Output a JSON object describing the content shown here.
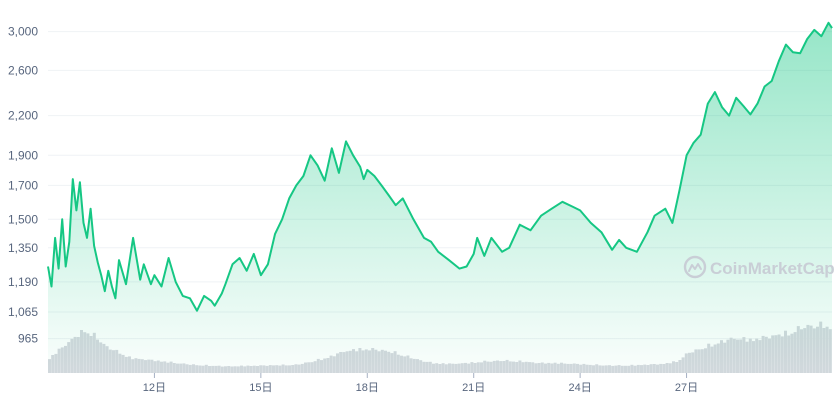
{
  "chart_data": {
    "type": "area",
    "title": "",
    "xlabel": "",
    "ylabel": "",
    "y_scale": "log",
    "ylim": [
      850,
      3250
    ],
    "xlim": [
      9.0,
      31.1
    ],
    "y_ticks": [
      3000,
      2600,
      2200,
      1900,
      1700,
      1500,
      1350,
      1190,
      1065,
      965
    ],
    "y_tick_labels": [
      "3,000",
      "2,600",
      "2,200",
      "1,900",
      "1,700",
      "1,500",
      "1,350",
      "1,190",
      "1,065",
      "965"
    ],
    "x_ticks": [
      12,
      15,
      18,
      21,
      24,
      27
    ],
    "x_tick_labels": [
      "12日",
      "15日",
      "18日",
      "21日",
      "24日",
      "27日"
    ],
    "watermark": "CoinMarketCap",
    "line_color": "#16c784",
    "grid": true,
    "series": [
      {
        "x": [
          9.0,
          9.1,
          9.2,
          9.3,
          9.4,
          9.5,
          9.6,
          9.7,
          9.8,
          9.9,
          10.0,
          10.1,
          10.2,
          10.3,
          10.4,
          10.5,
          10.6,
          10.7,
          10.8,
          10.9,
          11.0,
          11.2,
          11.4,
          11.6,
          11.7,
          11.9,
          12.0,
          12.2,
          12.4,
          12.6,
          12.8,
          13.0,
          13.2,
          13.4,
          13.6,
          13.7,
          13.9,
          14.0,
          14.2,
          14.4,
          14.6,
          14.8,
          15.0,
          15.2,
          15.4,
          15.6,
          15.8,
          16.0,
          16.2,
          16.4,
          16.6,
          16.8,
          17.0,
          17.2,
          17.4,
          17.6,
          17.8,
          17.9,
          18.0,
          18.2,
          18.4,
          18.6,
          18.8,
          19.0,
          19.3,
          19.6,
          19.8,
          20.0,
          20.3,
          20.6,
          20.8,
          21.0,
          21.1,
          21.3,
          21.5,
          21.8,
          22.0,
          22.3,
          22.6,
          22.9,
          23.2,
          23.5,
          23.8,
          24.0,
          24.3,
          24.6,
          24.9,
          25.1,
          25.3,
          25.6,
          25.9,
          26.1,
          26.4,
          26.6,
          26.8,
          27.0,
          27.2,
          27.4,
          27.6,
          27.8,
          28.0,
          28.2,
          28.4,
          28.6,
          28.8,
          29.0,
          29.2,
          29.4,
          29.6,
          29.8,
          30.0,
          30.2,
          30.4,
          30.6,
          30.8,
          31.0,
          31.1
        ],
        "values": [
          1260,
          1170,
          1400,
          1250,
          1500,
          1260,
          1380,
          1740,
          1550,
          1720,
          1480,
          1400,
          1560,
          1360,
          1280,
          1220,
          1150,
          1240,
          1170,
          1120,
          1290,
          1180,
          1400,
          1200,
          1270,
          1180,
          1220,
          1170,
          1300,
          1190,
          1130,
          1120,
          1070,
          1130,
          1110,
          1090,
          1140,
          1180,
          1270,
          1300,
          1240,
          1320,
          1220,
          1270,
          1420,
          1500,
          1620,
          1700,
          1760,
          1900,
          1830,
          1730,
          1950,
          1780,
          2000,
          1900,
          1820,
          1740,
          1800,
          1760,
          1700,
          1640,
          1580,
          1620,
          1500,
          1400,
          1380,
          1330,
          1290,
          1250,
          1260,
          1320,
          1400,
          1310,
          1400,
          1330,
          1350,
          1470,
          1440,
          1520,
          1560,
          1600,
          1570,
          1550,
          1480,
          1430,
          1340,
          1390,
          1350,
          1330,
          1430,
          1520,
          1560,
          1480,
          1670,
          1900,
          1990,
          2050,
          2300,
          2400,
          2270,
          2200,
          2350,
          2280,
          2210,
          2300,
          2450,
          2500,
          2690,
          2860,
          2780,
          2770,
          2920,
          3020,
          2950,
          3100,
          3040
        ]
      }
    ],
    "volume": {
      "x": [
        9.0,
        9.5,
        10.0,
        10.3,
        10.6,
        10.9,
        11.3,
        12.0,
        13.0,
        14.0,
        15.0,
        16.0,
        16.8,
        17.3,
        17.8,
        18.3,
        18.8,
        19.3,
        19.8,
        20.3,
        20.8,
        21.3,
        21.8,
        22.3,
        22.8,
        23.3,
        23.8,
        24.3,
        24.8,
        25.3,
        25.8,
        26.3,
        26.7,
        27.0,
        27.4,
        27.8,
        28.3,
        28.8,
        29.3,
        29.8,
        30.3,
        30.8,
        31.1
      ],
      "values": [
        18,
        36,
        52,
        44,
        32,
        26,
        18,
        15,
        10,
        8,
        9,
        10,
        18,
        26,
        29,
        28,
        24,
        17,
        12,
        11,
        12,
        14,
        15,
        14,
        12,
        12,
        11,
        10,
        9,
        9,
        10,
        11,
        14,
        24,
        30,
        36,
        42,
        40,
        44,
        48,
        56,
        58,
        55
      ]
    }
  }
}
